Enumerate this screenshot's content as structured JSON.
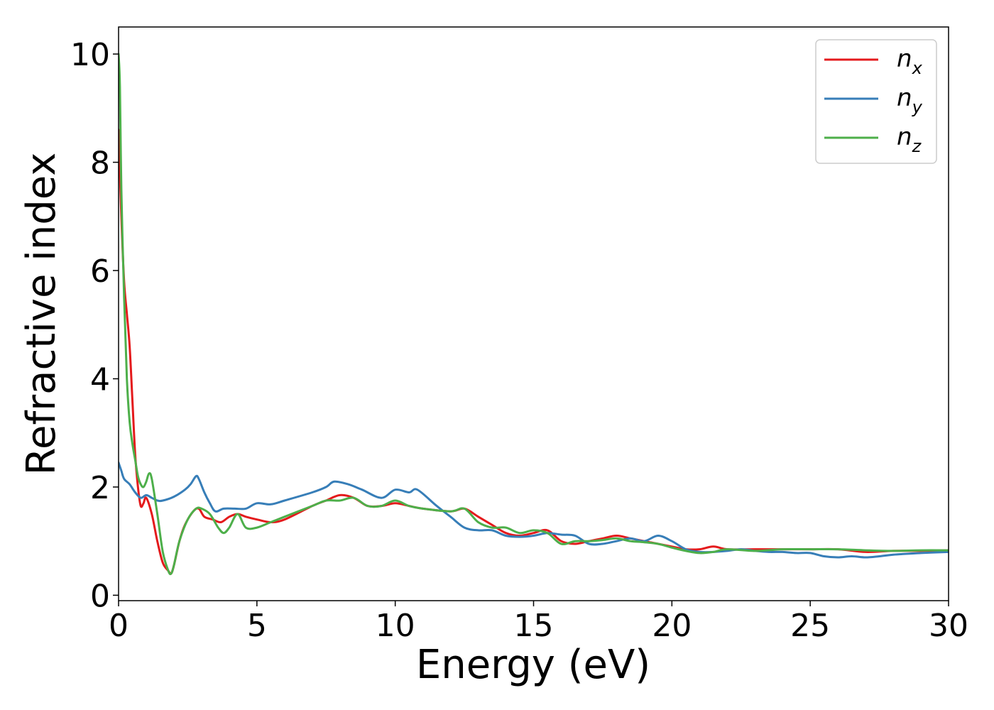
{
  "chart_data": {
    "type": "line",
    "title": "",
    "xlabel": "Energy (eV)",
    "ylabel": "Refractive index",
    "xlim": [
      0,
      30
    ],
    "ylim": [
      -0.1,
      10.5
    ],
    "xticks": [
      0,
      5,
      10,
      15,
      20,
      25,
      30
    ],
    "yticks": [
      0,
      2,
      4,
      6,
      8,
      10
    ],
    "grid": false,
    "legend": "top-right",
    "series": [
      {
        "name": "n",
        "sub": "x",
        "color": "#e41a1c",
        "x": [
          0,
          0.1,
          0.2,
          0.3,
          0.4,
          0.5,
          0.6,
          0.7,
          0.8,
          0.9,
          1.0,
          1.2,
          1.4,
          1.6,
          1.8,
          1.9,
          2.0,
          2.2,
          2.4,
          2.7,
          2.9,
          3.1,
          3.4,
          3.7,
          4.0,
          4.3,
          4.6,
          5.0,
          5.5,
          6.0,
          7.0,
          7.5,
          8.0,
          8.5,
          9.0,
          9.5,
          10.0,
          10.5,
          11.0,
          12.0,
          12.5,
          13.0,
          13.5,
          14.0,
          14.5,
          15.0,
          15.5,
          16.0,
          16.5,
          17.0,
          17.5,
          18.0,
          18.5,
          19.0,
          19.5,
          20.0,
          20.5,
          21.0,
          21.5,
          22.0,
          23.0,
          24.0,
          25.0,
          26.0,
          27.0,
          28.0,
          29.0,
          30.0
        ],
        "y": [
          8.6,
          7.0,
          5.8,
          5.2,
          4.6,
          3.6,
          2.6,
          2.0,
          1.65,
          1.7,
          1.8,
          1.5,
          1.0,
          0.6,
          0.45,
          0.4,
          0.55,
          1.0,
          1.3,
          1.55,
          1.6,
          1.45,
          1.4,
          1.35,
          1.45,
          1.5,
          1.45,
          1.4,
          1.35,
          1.4,
          1.65,
          1.75,
          1.85,
          1.8,
          1.65,
          1.65,
          1.7,
          1.65,
          1.6,
          1.55,
          1.6,
          1.45,
          1.3,
          1.15,
          1.1,
          1.15,
          1.2,
          1.0,
          0.95,
          1.0,
          1.05,
          1.1,
          1.05,
          1.0,
          0.95,
          0.9,
          0.85,
          0.85,
          0.9,
          0.85,
          0.85,
          0.85,
          0.85,
          0.85,
          0.8,
          0.82,
          0.82,
          0.83
        ]
      },
      {
        "name": "n",
        "sub": "y",
        "color": "#377eb8",
        "x": [
          0,
          0.1,
          0.2,
          0.4,
          0.6,
          0.8,
          1.0,
          1.2,
          1.4,
          1.6,
          2.0,
          2.4,
          2.6,
          2.8,
          2.9,
          3.1,
          3.3,
          3.5,
          3.8,
          4.2,
          4.6,
          5.0,
          5.5,
          6.0,
          7.0,
          7.5,
          7.8,
          8.3,
          8.8,
          9.5,
          10.0,
          10.5,
          10.8,
          11.5,
          12.0,
          12.5,
          13.0,
          13.5,
          14.0,
          14.5,
          15.0,
          15.5,
          16.0,
          16.5,
          17.0,
          17.5,
          18.0,
          18.5,
          19.0,
          19.5,
          20.0,
          20.5,
          21.0,
          21.5,
          22.0,
          22.5,
          23.0,
          23.5,
          24.0,
          24.5,
          25.0,
          25.5,
          26.0,
          26.5,
          27.0,
          27.5,
          28.0,
          29.0,
          30.0
        ],
        "y": [
          2.45,
          2.3,
          2.15,
          2.05,
          1.9,
          1.8,
          1.85,
          1.8,
          1.75,
          1.75,
          1.82,
          1.95,
          2.05,
          2.2,
          2.15,
          1.9,
          1.7,
          1.55,
          1.6,
          1.6,
          1.6,
          1.7,
          1.68,
          1.75,
          1.9,
          2.0,
          2.1,
          2.05,
          1.95,
          1.8,
          1.95,
          1.9,
          1.95,
          1.65,
          1.45,
          1.25,
          1.2,
          1.2,
          1.1,
          1.08,
          1.1,
          1.15,
          1.12,
          1.1,
          0.95,
          0.95,
          1.0,
          1.05,
          1.0,
          1.1,
          1.0,
          0.85,
          0.8,
          0.8,
          0.82,
          0.85,
          0.82,
          0.8,
          0.8,
          0.78,
          0.78,
          0.72,
          0.7,
          0.72,
          0.7,
          0.72,
          0.75,
          0.78,
          0.8
        ]
      },
      {
        "name": "n",
        "sub": "z",
        "color": "#4daf4a",
        "x": [
          0,
          0.05,
          0.1,
          0.2,
          0.3,
          0.4,
          0.5,
          0.6,
          0.7,
          0.8,
          0.9,
          1.0,
          1.1,
          1.2,
          1.4,
          1.6,
          1.8,
          1.9,
          2.0,
          2.2,
          2.5,
          2.8,
          3.0,
          3.3,
          3.6,
          3.8,
          4.0,
          4.3,
          4.6,
          5.0,
          5.5,
          6.0,
          7.0,
          7.5,
          8.0,
          8.5,
          9.0,
          9.5,
          10.0,
          10.5,
          11.0,
          12.0,
          12.5,
          13.0,
          13.5,
          14.0,
          14.5,
          15.0,
          15.5,
          16.0,
          16.5,
          17.0,
          17.5,
          18.0,
          18.5,
          19.0,
          19.5,
          20.0,
          20.5,
          21.0,
          21.5,
          22.0,
          23.0,
          24.0,
          25.0,
          26.0,
          27.0,
          28.0,
          29.0,
          30.0
        ],
        "y": [
          10.0,
          9.4,
          7.5,
          5.5,
          4.0,
          3.2,
          2.8,
          2.5,
          2.2,
          2.05,
          2.0,
          2.1,
          2.25,
          2.15,
          1.5,
          0.8,
          0.45,
          0.4,
          0.55,
          1.0,
          1.4,
          1.6,
          1.6,
          1.5,
          1.25,
          1.15,
          1.25,
          1.5,
          1.25,
          1.25,
          1.35,
          1.45,
          1.65,
          1.75,
          1.75,
          1.8,
          1.65,
          1.65,
          1.75,
          1.65,
          1.6,
          1.55,
          1.6,
          1.35,
          1.25,
          1.25,
          1.15,
          1.2,
          1.15,
          0.95,
          1.0,
          1.0,
          1.02,
          1.05,
          1.0,
          0.98,
          0.95,
          0.88,
          0.82,
          0.78,
          0.8,
          0.85,
          0.82,
          0.85,
          0.85,
          0.85,
          0.83,
          0.82,
          0.83,
          0.83
        ]
      }
    ]
  }
}
